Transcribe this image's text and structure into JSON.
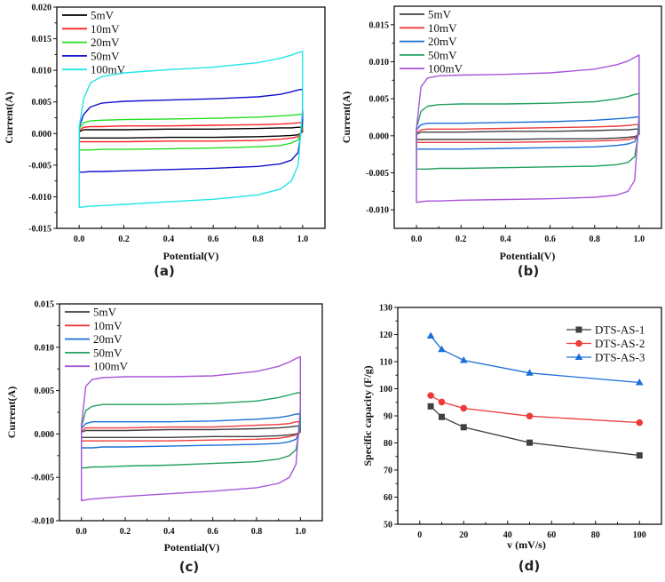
{
  "chart_data": [
    {
      "id": "a",
      "type": "line",
      "panel_label": "(a)",
      "xlabel": "Potential(V)",
      "ylabel": "Current(A)",
      "xlim": [
        -0.1,
        1.1
      ],
      "ylim": [
        -0.015,
        0.02
      ],
      "xticks": [
        "0.0",
        "0.2",
        "0.4",
        "0.6",
        "0.8",
        "1.0"
      ],
      "xtick_values": [
        0,
        0.2,
        0.4,
        0.6,
        0.8,
        1.0
      ],
      "yticks": [
        "-0.015",
        "-0.010",
        "-0.005",
        "0.000",
        "0.005",
        "0.010",
        "0.015",
        "0.020"
      ],
      "ytick_values": [
        -0.015,
        -0.01,
        -0.005,
        0,
        0.005,
        0.01,
        0.015,
        0.02
      ],
      "legend_position": "top-left",
      "x": [
        0.0,
        0.02,
        0.05,
        0.1,
        0.2,
        0.4,
        0.6,
        0.8,
        0.9,
        0.95,
        0.98,
        1.0
      ],
      "series": [
        {
          "name": "5mV",
          "color": "#000000",
          "upper": [
            0.0003,
            0.0006,
            0.0006,
            0.0006,
            0.0006,
            0.0007,
            0.0007,
            0.0008,
            0.0009,
            0.0009,
            0.001,
            0.001
          ],
          "lower": [
            -0.0007,
            -0.0007,
            -0.0007,
            -0.0007,
            -0.0007,
            -0.0006,
            -0.0006,
            -0.0005,
            -0.0004,
            -0.0003,
            -0.0002,
            0.0003
          ]
        },
        {
          "name": "10mV",
          "color": "#ff2020",
          "upper": [
            0.0005,
            0.001,
            0.0011,
            0.0011,
            0.0012,
            0.0012,
            0.0013,
            0.0014,
            0.0015,
            0.0016,
            0.0017,
            0.0017
          ],
          "lower": [
            -0.0013,
            -0.0013,
            -0.0013,
            -0.0013,
            -0.0013,
            -0.0012,
            -0.0012,
            -0.0011,
            -0.0009,
            -0.0007,
            -0.0005,
            0.0005
          ]
        },
        {
          "name": "20mV",
          "color": "#22dd22",
          "upper": [
            0.0008,
            0.0017,
            0.002,
            0.0021,
            0.0022,
            0.0023,
            0.0024,
            0.0026,
            0.0028,
            0.0029,
            0.003,
            0.0031
          ],
          "lower": [
            -0.0026,
            -0.0026,
            -0.0026,
            -0.0025,
            -0.0025,
            -0.0024,
            -0.0023,
            -0.0021,
            -0.0019,
            -0.0015,
            -0.001,
            0.001
          ]
        },
        {
          "name": "50mV",
          "color": "#1010cc",
          "upper": [
            0.001,
            0.003,
            0.0042,
            0.0048,
            0.0051,
            0.0053,
            0.0055,
            0.0058,
            0.0062,
            0.0066,
            0.0069,
            0.007
          ],
          "lower": [
            -0.0061,
            -0.0061,
            -0.006,
            -0.006,
            -0.0059,
            -0.0057,
            -0.0055,
            -0.0052,
            -0.0048,
            -0.0042,
            -0.003,
            0.002
          ]
        },
        {
          "name": "100mV",
          "color": "#22e5e5",
          "upper": [
            0.001,
            0.0055,
            0.008,
            0.009,
            0.0096,
            0.0101,
            0.0105,
            0.0112,
            0.0119,
            0.0124,
            0.0128,
            0.013
          ],
          "lower": [
            -0.0117,
            -0.0116,
            -0.0115,
            -0.0114,
            -0.0112,
            -0.0108,
            -0.0104,
            -0.0097,
            -0.0088,
            -0.0075,
            -0.005,
            0.004
          ]
        }
      ]
    },
    {
      "id": "b",
      "type": "line",
      "panel_label": "(b)",
      "xlabel": "Potential(V)",
      "ylabel": "Current(A)",
      "xlim": [
        -0.1,
        1.1
      ],
      "ylim": [
        -0.0125,
        0.0175
      ],
      "xticks": [
        "0.0",
        "0.2",
        "0.4",
        "0.6",
        "0.8",
        "1.0"
      ],
      "xtick_values": [
        0,
        0.2,
        0.4,
        0.6,
        0.8,
        1.0
      ],
      "yticks": [
        "-0.010",
        "-0.005",
        "0.000",
        "0.005",
        "0.010",
        "0.015"
      ],
      "ytick_values": [
        -0.01,
        -0.005,
        0,
        0.005,
        0.01,
        0.015
      ],
      "legend_position": "top-left",
      "x": [
        0.0,
        0.02,
        0.05,
        0.1,
        0.2,
        0.4,
        0.6,
        0.8,
        0.9,
        0.95,
        0.98,
        1.0
      ],
      "series": [
        {
          "name": "5mV",
          "color": "#404040",
          "upper": [
            0.0002,
            0.0005,
            0.0005,
            0.0005,
            0.0005,
            0.0006,
            0.0006,
            0.0007,
            0.0008,
            0.0008,
            0.0009,
            0.0009
          ],
          "lower": [
            -0.0005,
            -0.0005,
            -0.0005,
            -0.0005,
            -0.0005,
            -0.0005,
            -0.0004,
            -0.0004,
            -0.0003,
            -0.0002,
            -0.0001,
            0.0002
          ]
        },
        {
          "name": "10mV",
          "color": "#ee3a3a",
          "upper": [
            0.0004,
            0.0008,
            0.0009,
            0.0009,
            0.0009,
            0.001,
            0.0011,
            0.0012,
            0.0013,
            0.0014,
            0.0015,
            0.0015
          ],
          "lower": [
            -0.0009,
            -0.0009,
            -0.0009,
            -0.0009,
            -0.0009,
            -0.0009,
            -0.0008,
            -0.0007,
            -0.0006,
            -0.0005,
            -0.0003,
            0.0003
          ]
        },
        {
          "name": "20mV",
          "color": "#1a6fd8",
          "upper": [
            0.0008,
            0.0015,
            0.0017,
            0.0017,
            0.0017,
            0.0018,
            0.0019,
            0.0021,
            0.0023,
            0.0024,
            0.0025,
            0.0026
          ],
          "lower": [
            -0.0018,
            -0.0018,
            -0.0018,
            -0.0018,
            -0.0018,
            -0.0017,
            -0.0016,
            -0.0015,
            -0.0013,
            -0.0011,
            -0.0008,
            0.0006
          ]
        },
        {
          "name": "50mV",
          "color": "#22a060",
          "upper": [
            0.001,
            0.0033,
            0.004,
            0.0042,
            0.0043,
            0.0043,
            0.0044,
            0.0046,
            0.005,
            0.0053,
            0.0056,
            0.0057
          ],
          "lower": [
            -0.0045,
            -0.0045,
            -0.0045,
            -0.0044,
            -0.0044,
            -0.0043,
            -0.0042,
            -0.0041,
            -0.0039,
            -0.0036,
            -0.0028,
            0.001
          ]
        },
        {
          "name": "100mV",
          "color": "#a855d8",
          "upper": [
            0.001,
            0.0066,
            0.0078,
            0.0081,
            0.0082,
            0.0083,
            0.0085,
            0.009,
            0.0096,
            0.0101,
            0.0106,
            0.0109
          ],
          "lower": [
            -0.009,
            -0.0089,
            -0.0088,
            -0.0088,
            -0.0087,
            -0.0086,
            -0.0085,
            -0.0083,
            -0.008,
            -0.0075,
            -0.006,
            0.003
          ]
        }
      ]
    },
    {
      "id": "c",
      "type": "line",
      "panel_label": "(c)",
      "xlabel": "Potential(V)",
      "ylabel": "Current(A)",
      "xlim": [
        -0.1,
        1.1
      ],
      "ylim": [
        -0.01,
        0.015
      ],
      "xticks": [
        "0.0",
        "0.2",
        "0.4",
        "0.6",
        "0.8",
        "1.0"
      ],
      "xtick_values": [
        0,
        0.2,
        0.4,
        0.6,
        0.8,
        1.0
      ],
      "yticks": [
        "-0.010",
        "-0.005",
        "0.000",
        "0.005",
        "0.010",
        "0.015"
      ],
      "ytick_values": [
        -0.01,
        -0.005,
        0,
        0.005,
        0.01,
        0.015
      ],
      "legend_position": "top-left",
      "x": [
        0.0,
        0.02,
        0.05,
        0.1,
        0.2,
        0.4,
        0.6,
        0.8,
        0.9,
        0.95,
        0.98,
        1.0
      ],
      "series": [
        {
          "name": "5mV",
          "color": "#404040",
          "upper": [
            0.0002,
            0.0004,
            0.0004,
            0.0004,
            0.0004,
            0.0005,
            0.0005,
            0.0006,
            0.0007,
            0.0008,
            0.0009,
            0.0009
          ],
          "lower": [
            -0.0004,
            -0.0004,
            -0.0004,
            -0.0004,
            -0.0004,
            -0.0004,
            -0.0003,
            -0.0003,
            -0.0002,
            -0.0001,
            0.0,
            0.0002
          ]
        },
        {
          "name": "10mV",
          "color": "#ee3a3a",
          "upper": [
            0.0003,
            0.0007,
            0.0007,
            0.0007,
            0.0007,
            0.0008,
            0.0008,
            0.001,
            0.0011,
            0.0012,
            0.0014,
            0.0014
          ],
          "lower": [
            -0.0008,
            -0.0008,
            -0.0008,
            -0.0008,
            -0.0008,
            -0.0008,
            -0.0007,
            -0.0006,
            -0.0005,
            -0.0003,
            -0.0001,
            0.0002
          ]
        },
        {
          "name": "20mV",
          "color": "#1a6fd8",
          "upper": [
            0.0006,
            0.0012,
            0.0014,
            0.0014,
            0.0014,
            0.0014,
            0.0015,
            0.0017,
            0.0019,
            0.0021,
            0.0023,
            0.0023
          ],
          "lower": [
            -0.0016,
            -0.0016,
            -0.0016,
            -0.0015,
            -0.0015,
            -0.0014,
            -0.0013,
            -0.0012,
            -0.0011,
            -0.0009,
            -0.0006,
            0.0005
          ]
        },
        {
          "name": "50mV",
          "color": "#22a060",
          "upper": [
            0.0008,
            0.0027,
            0.0032,
            0.0034,
            0.0034,
            0.0034,
            0.0035,
            0.0038,
            0.0042,
            0.0045,
            0.0047,
            0.0048
          ],
          "lower": [
            -0.0039,
            -0.0039,
            -0.0038,
            -0.0038,
            -0.0037,
            -0.0036,
            -0.0034,
            -0.0032,
            -0.0029,
            -0.0025,
            -0.0018,
            0.001
          ]
        },
        {
          "name": "100mV",
          "color": "#a855d8",
          "upper": [
            0.001,
            0.0055,
            0.0063,
            0.0065,
            0.0066,
            0.0066,
            0.0067,
            0.0072,
            0.0078,
            0.0083,
            0.0087,
            0.0089
          ],
          "lower": [
            -0.0077,
            -0.0076,
            -0.0075,
            -0.0074,
            -0.0072,
            -0.0069,
            -0.0066,
            -0.0062,
            -0.0057,
            -0.005,
            -0.0035,
            0.003
          ]
        }
      ]
    },
    {
      "id": "d",
      "type": "line",
      "panel_label": "(d)",
      "xlabel": "v (mV/s)",
      "ylabel": "Specific capacity (F/g)",
      "xlim": [
        -10,
        110
      ],
      "ylim": [
        50,
        130
      ],
      "xticks": [
        "0",
        "20",
        "40",
        "60",
        "80",
        "100"
      ],
      "xtick_values": [
        0,
        20,
        40,
        60,
        80,
        100
      ],
      "yticks": [
        "50",
        "60",
        "70",
        "80",
        "90",
        "100",
        "110",
        "120",
        "130"
      ],
      "ytick_values": [
        50,
        60,
        70,
        80,
        90,
        100,
        110,
        120,
        130
      ],
      "legend_position": "top-right",
      "x": [
        5,
        10,
        20,
        50,
        100
      ],
      "series": [
        {
          "name": "DTS-AS-1",
          "color": "#404040",
          "marker": "square",
          "values": [
            93.5,
            89.6,
            85.8,
            80.1,
            75.4
          ]
        },
        {
          "name": "DTS-AS-2",
          "color": "#ee3a3a",
          "marker": "circle",
          "values": [
            97.5,
            95.1,
            92.8,
            89.9,
            87.5
          ]
        },
        {
          "name": "DTS-AS-3",
          "color": "#1a6fd8",
          "marker": "triangle",
          "values": [
            119.5,
            114.5,
            110.5,
            105.8,
            102.3
          ]
        }
      ]
    }
  ]
}
